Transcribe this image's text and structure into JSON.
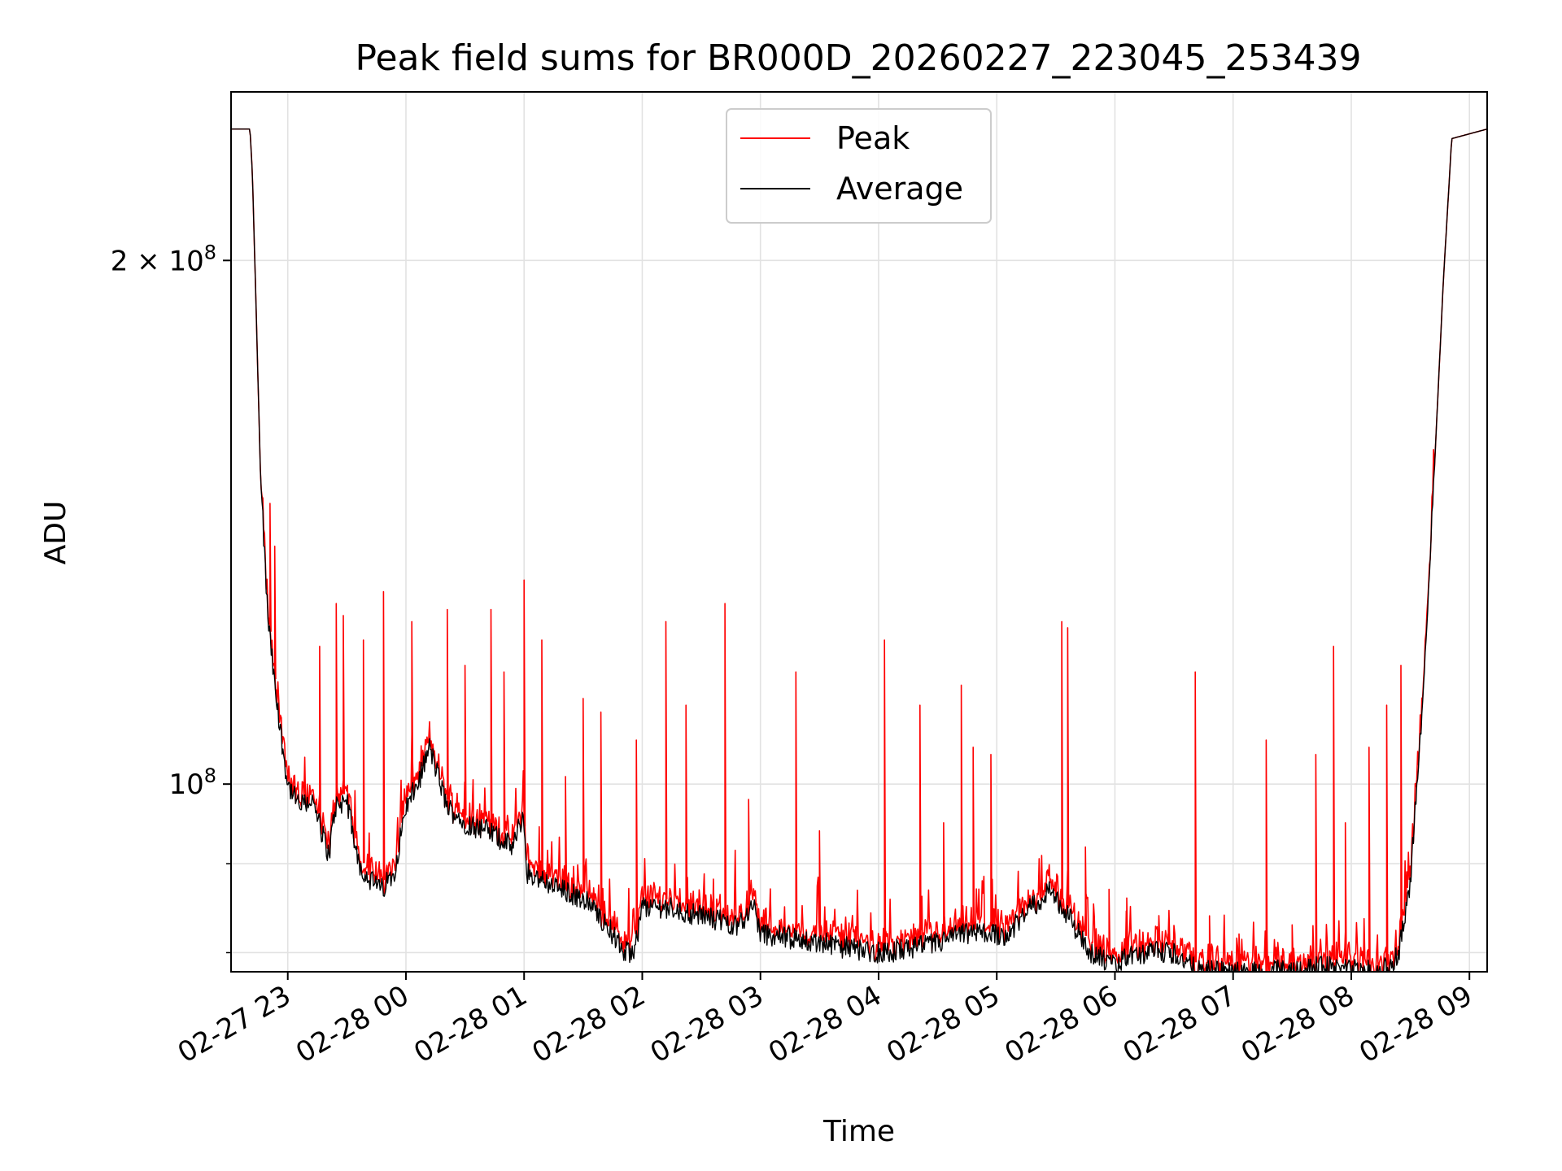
{
  "chart_data": {
    "type": "line",
    "title": "Peak field sums for BR000D_20260227_223045_253439",
    "xlabel": "Time",
    "ylabel": "ADU",
    "yscale": "log",
    "ylim": [
      78000000,
      250000000
    ],
    "xlim_hours": [
      22.52,
      33.15
    ],
    "x_ticks": [
      {
        "hours": 23,
        "label": "02-27 23"
      },
      {
        "hours": 24,
        "label": "02-28 00"
      },
      {
        "hours": 25,
        "label": "02-28 01"
      },
      {
        "hours": 26,
        "label": "02-28 02"
      },
      {
        "hours": 27,
        "label": "02-28 03"
      },
      {
        "hours": 28,
        "label": "02-28 04"
      },
      {
        "hours": 29,
        "label": "02-28 05"
      },
      {
        "hours": 30,
        "label": "02-28 06"
      },
      {
        "hours": 31,
        "label": "02-28 07"
      },
      {
        "hours": 32,
        "label": "02-28 08"
      },
      {
        "hours": 33,
        "label": "02-28 09"
      }
    ],
    "y_major_ticks": [
      {
        "value": 100000000,
        "base": "10",
        "exp": "8",
        "mult": ""
      },
      {
        "value": 200000000,
        "base": "10",
        "exp": "8",
        "mult": "2 × "
      }
    ],
    "y_minor_tick_values": [
      80000000,
      90000000
    ],
    "grid": true,
    "legend": {
      "placement": "top-center",
      "entries": [
        {
          "name": "Peak",
          "color": "#ff0000"
        },
        {
          "name": "Average",
          "color": "#000000"
        }
      ]
    },
    "average_profile": {
      "hours": [
        22.52,
        22.68,
        22.7,
        22.73,
        22.77,
        22.83,
        22.9,
        23.0,
        23.1,
        23.2,
        23.35,
        23.4,
        23.5,
        23.6,
        23.7,
        23.8,
        23.9,
        24.0,
        24.1,
        24.2,
        24.35,
        24.5,
        24.7,
        24.9,
        24.99,
        25.02,
        25.3,
        25.5,
        25.7,
        25.85,
        25.93,
        26.0,
        26.2,
        26.5,
        26.8,
        26.95,
        27.0,
        27.05,
        27.5,
        28.0,
        28.3,
        28.5,
        28.7,
        28.9,
        29.1,
        29.3,
        29.45,
        29.6,
        29.8,
        30.0,
        30.1,
        30.3,
        30.5,
        30.6,
        30.7,
        30.8,
        31.0,
        31.2,
        31.5,
        31.8,
        32.0,
        32.2,
        32.35,
        32.4,
        32.5,
        32.6,
        32.7,
        32.78,
        32.85,
        33.15
      ],
      "values": [
        238000000,
        238000000,
        225000000,
        190000000,
        150000000,
        125000000,
        112000000,
        100000000,
        97000000,
        98000000,
        91000000,
        97000000,
        98000000,
        90000000,
        88000000,
        87000000,
        89000000,
        97000000,
        100000000,
        105000000,
        97000000,
        95000000,
        94000000,
        92000000,
        96000000,
        89000000,
        87000000,
        86000000,
        83000000,
        80000000,
        80000000,
        85000000,
        85000000,
        84000000,
        83000000,
        85000000,
        82000000,
        82000000,
        81000000,
        80000000,
        80500000,
        81000000,
        82000000,
        82000000,
        82000000,
        85000000,
        87000000,
        84000000,
        80000000,
        78500000,
        79500000,
        80000000,
        80000000,
        79000000,
        78000000,
        78000000,
        78000000,
        78000000,
        78200000,
        78500000,
        78200000,
        78000000,
        78500000,
        80000000,
        88000000,
        110000000,
        150000000,
        195000000,
        235000000,
        238000000
      ]
    },
    "peak_spikes": {
      "hours": [
        22.85,
        22.89,
        23.27,
        23.41,
        23.47,
        23.64,
        23.81,
        24.05,
        24.35,
        24.5,
        24.72,
        24.83,
        25.0,
        25.15,
        25.35,
        25.5,
        25.65,
        25.95,
        26.2,
        26.37,
        26.7,
        26.9,
        27.3,
        27.5,
        28.05,
        28.35,
        28.55,
        28.7,
        28.8,
        28.95,
        29.55,
        29.6,
        29.75,
        29.95,
        30.1,
        30.45,
        30.68,
        30.8,
        31.05,
        31.28,
        31.5,
        31.7,
        31.85,
        31.95,
        32.15,
        32.3,
        32.42
      ],
      "values": [
        145000000,
        137000000,
        120000000,
        127000000,
        125000000,
        121000000,
        129000000,
        124000000,
        126000000,
        117000000,
        126000000,
        116000000,
        131000000,
        121000000,
        101000000,
        112000000,
        110000000,
        106000000,
        124000000,
        111000000,
        127000000,
        98000000,
        116000000,
        94000000,
        121000000,
        111000000,
        95000000,
        114000000,
        105000000,
        104000000,
        124000000,
        123000000,
        92000000,
        87000000,
        86000000,
        82000000,
        116000000,
        84000000,
        82000000,
        106000000,
        83000000,
        104000000,
        120000000,
        95000000,
        105000000,
        111000000,
        117000000
      ]
    }
  }
}
